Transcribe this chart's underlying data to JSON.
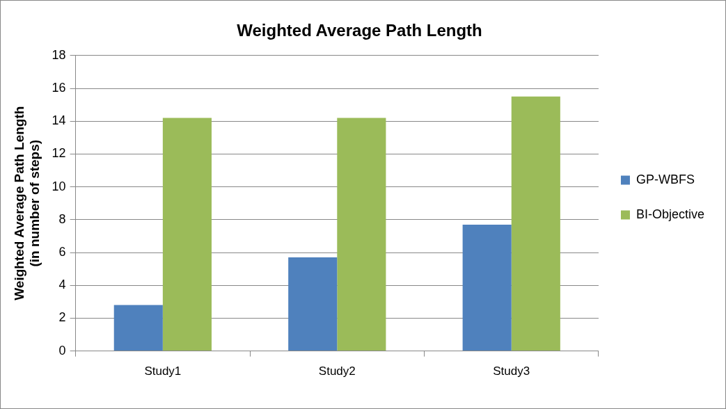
{
  "chart_data": {
    "type": "bar",
    "title": "Weighted Average Path Length",
    "ylabel": "Weighted Average Path Length\n(in number of steps)",
    "categories": [
      "Study1",
      "Study2",
      "Study3"
    ],
    "series": [
      {
        "name": "GP-WBFS",
        "color": "#4f81bd",
        "values": [
          2.8,
          5.7,
          7.7
        ]
      },
      {
        "name": "BI-Objective",
        "color": "#9bbb59",
        "values": [
          14.2,
          14.2,
          15.5
        ]
      }
    ],
    "ylim": [
      0,
      18
    ],
    "yticks": [
      0,
      2,
      4,
      6,
      8,
      10,
      12,
      14,
      16,
      18
    ],
    "grid": "y",
    "legend": "right"
  }
}
